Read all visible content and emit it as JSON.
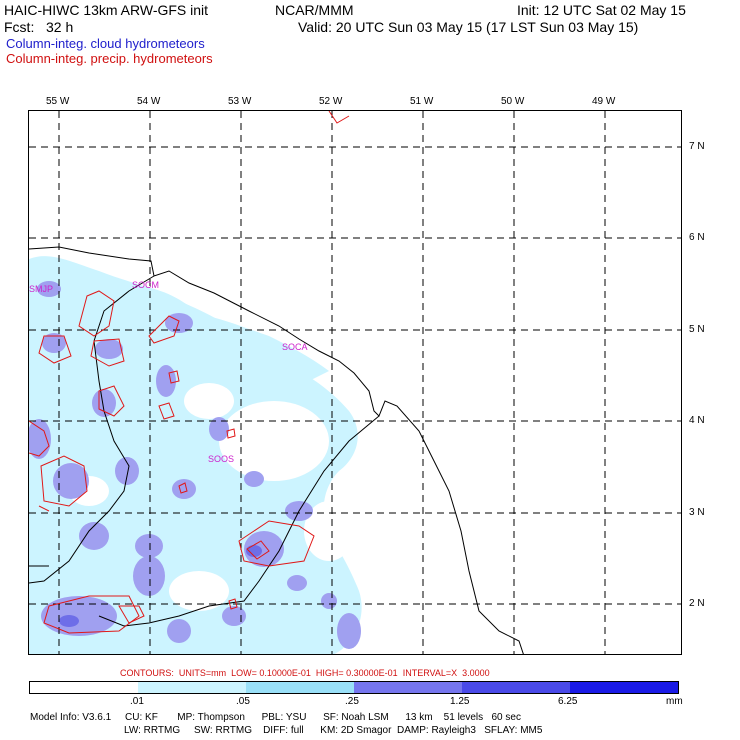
{
  "header": {
    "model": "HAIC-HIWC 13km ARW-GFS init",
    "org": "NCAR/MMM",
    "init": "Init: 12 UTC Sat 02 May 15",
    "fcst": "Fcst:   32 h",
    "valid": "Valid: 20 UTC Sun 03 May 15 (17 LST Sun 03 May 15)",
    "cloud_label": "Column-integ. cloud hydrometeors",
    "precip_label": "Column-integ. precip. hydrometeors"
  },
  "colors": {
    "cloud": "#2020cc",
    "precip": "#d01010",
    "station": "#cc22cc",
    "shade_levels": [
      "#ffffff",
      "#ccf4ff",
      "#9ae0f8",
      "#a0a0f0",
      "#6e6ee8",
      "#4646e0",
      "#1a1ae6"
    ]
  },
  "map": {
    "lon_labels": [
      "55 W",
      "54 W",
      "53 W",
      "52 W",
      "51 W",
      "50 W",
      "49 W"
    ],
    "lat_labels": [
      "7 N",
      "6 N",
      "5 N",
      "4 N",
      "3 N",
      "2 N"
    ],
    "stations": [
      "SMJP",
      "SOCM",
      "SOCA",
      "SOOS"
    ],
    "gridlines": "dashed"
  },
  "contours_text": "CONTOURS:  UNITS=mm  LOW= 0.10000E-01  HIGH= 0.30000E-01  INTERVAL=X  3.0000",
  "colorbar": {
    "ticks": [
      ".01",
      ".05",
      ".25",
      "1.25",
      "6.25"
    ],
    "unit": "mm"
  },
  "model_info": {
    "line1": "Model Info: V3.6.1     CU: KF       MP: Thompson      PBL: YSU      SF: Noah LSM      13 km    51 levels   60 sec",
    "line2": "LW: RRTMG     SW: RRTMG    DIFF: full      KM: 2D Smagor  DAMP: Rayleigh3   SFLAY: MM5"
  }
}
